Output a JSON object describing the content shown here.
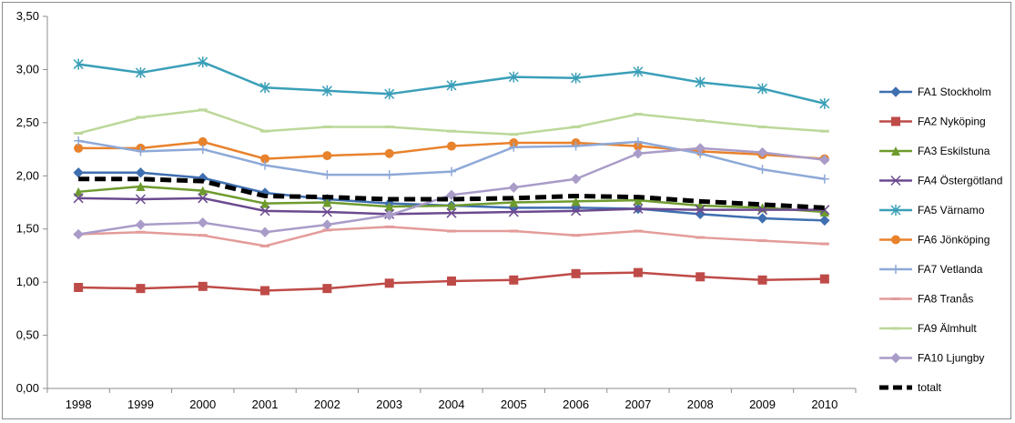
{
  "chart_data": {
    "type": "line",
    "categories": [
      "1998",
      "1999",
      "2000",
      "2001",
      "2002",
      "2003",
      "2004",
      "2005",
      "2006",
      "2007",
      "2008",
      "2009",
      "2010"
    ],
    "ylim": [
      0,
      3.5
    ],
    "yticks": [
      "0,00",
      "0,50",
      "1,00",
      "1,50",
      "2,00",
      "2,50",
      "3,00",
      "3,50"
    ],
    "grid": false,
    "legend_position": "right",
    "series": [
      {
        "name": "FA1 Stockholm",
        "color": "#3f6fb0",
        "marker": "diamond",
        "dashed": false,
        "values": [
          2.03,
          2.03,
          1.98,
          1.84,
          1.78,
          1.74,
          1.72,
          1.7,
          1.7,
          1.69,
          1.64,
          1.6,
          1.58
        ]
      },
      {
        "name": "FA2 Nyköping",
        "color": "#be4b48",
        "marker": "square",
        "dashed": false,
        "values": [
          0.95,
          0.94,
          0.96,
          0.92,
          0.94,
          0.99,
          1.01,
          1.02,
          1.08,
          1.09,
          1.05,
          1.02,
          1.03
        ]
      },
      {
        "name": "FA3 Eskilstuna",
        "color": "#6e9b2e",
        "marker": "triangle",
        "dashed": false,
        "values": [
          1.85,
          1.9,
          1.86,
          1.74,
          1.75,
          1.71,
          1.72,
          1.75,
          1.76,
          1.77,
          1.72,
          1.7,
          1.66
        ]
      },
      {
        "name": "FA4 Östergötland",
        "color": "#6b4a8f",
        "marker": "x",
        "dashed": false,
        "values": [
          1.79,
          1.78,
          1.79,
          1.67,
          1.66,
          1.64,
          1.65,
          1.66,
          1.67,
          1.69,
          1.68,
          1.68,
          1.68
        ]
      },
      {
        "name": "FA5 Värnamo",
        "color": "#3a9fb8",
        "marker": "star",
        "dashed": false,
        "values": [
          3.05,
          2.97,
          3.07,
          2.83,
          2.8,
          2.77,
          2.85,
          2.93,
          2.92,
          2.98,
          2.88,
          2.82,
          2.68
        ]
      },
      {
        "name": "FA6 Jönköping",
        "color": "#e8822c",
        "marker": "circle",
        "dashed": false,
        "values": [
          2.26,
          2.26,
          2.32,
          2.16,
          2.19,
          2.21,
          2.28,
          2.31,
          2.31,
          2.28,
          2.23,
          2.2,
          2.16
        ]
      },
      {
        "name": "FA7 Vetlanda",
        "color": "#8ea9d8",
        "marker": "plus",
        "dashed": false,
        "values": [
          2.33,
          2.23,
          2.25,
          2.1,
          2.01,
          2.01,
          2.04,
          2.27,
          2.28,
          2.32,
          2.21,
          2.06,
          1.97
        ]
      },
      {
        "name": "FA8 Tranås",
        "color": "#e39c9a",
        "marker": "dash",
        "dashed": false,
        "values": [
          1.45,
          1.47,
          1.44,
          1.34,
          1.49,
          1.52,
          1.48,
          1.48,
          1.44,
          1.48,
          1.42,
          1.39,
          1.36
        ]
      },
      {
        "name": "FA9 Älmhult",
        "color": "#bcd89a",
        "marker": "dash",
        "dashed": false,
        "values": [
          2.4,
          2.55,
          2.62,
          2.42,
          2.46,
          2.46,
          2.42,
          2.39,
          2.46,
          2.58,
          2.52,
          2.46,
          2.42
        ]
      },
      {
        "name": "FA10 Ljungby",
        "color": "#a99cc8",
        "marker": "diamond",
        "dashed": false,
        "values": [
          1.45,
          1.54,
          1.56,
          1.47,
          1.54,
          1.63,
          1.82,
          1.89,
          1.97,
          2.21,
          2.26,
          2.22,
          2.15
        ]
      },
      {
        "name": "totalt",
        "color": "#000000",
        "marker": "none",
        "dashed": true,
        "values": [
          1.97,
          1.97,
          1.95,
          1.81,
          1.8,
          1.78,
          1.78,
          1.79,
          1.81,
          1.8,
          1.76,
          1.73,
          1.7
        ]
      }
    ]
  }
}
